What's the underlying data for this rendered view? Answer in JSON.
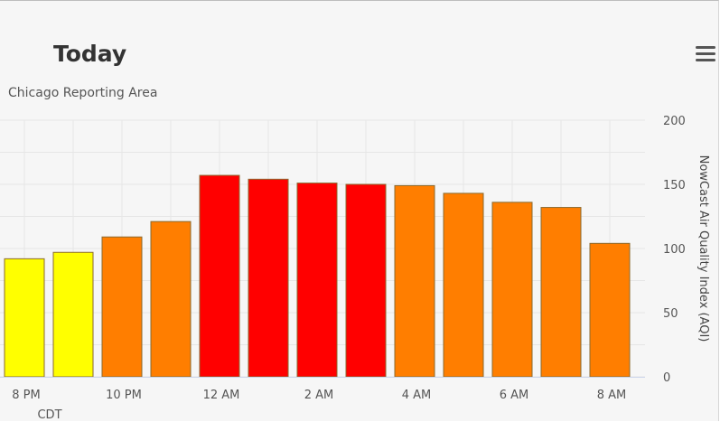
{
  "chart": {
    "title": "Today",
    "subtitle": "Chicago Reporting Area",
    "menu_icon": "hamburger-menu-icon"
  },
  "chart_data": {
    "type": "bar",
    "title": "Today",
    "subtitle": "Chicago Reporting Area",
    "ylabel": "NowCast Air Quality Index (AQI)",
    "xlabel": "CDT",
    "ylim": [
      0,
      200
    ],
    "yticks": [
      0,
      50,
      100,
      150,
      200
    ],
    "grid": true,
    "x_tick_labels": [
      "8 PM",
      "10 PM",
      "12 AM",
      "2 AM",
      "4 AM",
      "6 AM",
      "8 AM"
    ],
    "categories": [
      "8 PM",
      "9 PM",
      "10 PM",
      "11 PM",
      "12 AM",
      "1 AM",
      "2 AM",
      "3 AM",
      "4 AM",
      "5 AM",
      "6 AM",
      "7 AM",
      "8 AM"
    ],
    "values": [
      92,
      97,
      109,
      121,
      157,
      154,
      151,
      150,
      149,
      143,
      136,
      132,
      104
    ],
    "colors": [
      "#ffff00",
      "#ffff00",
      "#ff7e00",
      "#ff7e00",
      "#ff0000",
      "#ff0000",
      "#ff0000",
      "#ff0000",
      "#ff7e00",
      "#ff7e00",
      "#ff7e00",
      "#ff7e00",
      "#ff7e00"
    ]
  }
}
